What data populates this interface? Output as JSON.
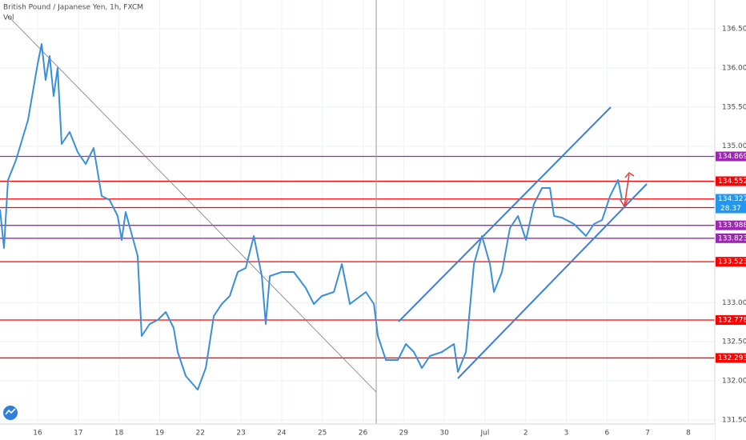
{
  "chart_data": {
    "type": "line",
    "title": "British Pound / Japanese Yen, 1h, FXCM",
    "volume_label": "Vol",
    "xlim": [
      -0.925,
      16.65
    ],
    "ylim": [
      131.449,
      136.868
    ],
    "grid": true,
    "xticks": [
      {
        "value": 0,
        "label": "16"
      },
      {
        "value": 1,
        "label": "17"
      },
      {
        "value": 2,
        "label": "18"
      },
      {
        "value": 3,
        "label": "19"
      },
      {
        "value": 4,
        "label": "22"
      },
      {
        "value": 5,
        "label": "23"
      },
      {
        "value": 6,
        "label": "24"
      },
      {
        "value": 7,
        "label": "25"
      },
      {
        "value": 8,
        "label": "26"
      },
      {
        "value": 9,
        "label": "29"
      },
      {
        "value": 10,
        "label": "30"
      },
      {
        "value": 11,
        "label": "Jul"
      },
      {
        "value": 12,
        "label": "2"
      },
      {
        "value": 13,
        "label": "3"
      },
      {
        "value": 14,
        "label": "6"
      },
      {
        "value": 15,
        "label": "7"
      },
      {
        "value": 16,
        "label": "8"
      }
    ],
    "yticks": [
      {
        "value": 131.5,
        "label": "131.500"
      },
      {
        "value": 132,
        "label": "132.000"
      },
      {
        "value": 132.5,
        "label": "132.500"
      },
      {
        "value": 133,
        "label": "133.000"
      },
      {
        "value": 135,
        "label": "135.000"
      },
      {
        "value": 135.5,
        "label": "135.500"
      },
      {
        "value": 136,
        "label": "136.000"
      },
      {
        "value": 136.5,
        "label": "136.500"
      }
    ],
    "series": [
      {
        "color": "#3a8fdb",
        "x": [
          -0.925,
          -0.827,
          -0.728,
          -0.531,
          -0.236,
          0,
          0.098,
          0.197,
          0.295,
          0.394,
          0.492,
          0.591,
          0.787,
          0.984,
          1.181,
          1.378,
          1.575,
          1.772,
          1.969,
          2.067,
          2.165,
          2.461,
          2.559,
          2.756,
          2.953,
          3.15,
          3.346,
          3.445,
          3.642,
          3.937,
          4.134,
          4.331,
          4.528,
          4.724,
          4.921,
          5.118,
          5.315,
          5.512,
          5.61,
          5.709,
          6.004,
          6.299,
          6.594,
          6.791,
          6.988,
          7.283,
          7.48,
          7.677,
          8.071,
          8.268,
          8.366,
          8.563,
          8.858,
          9.055,
          9.252,
          9.449,
          9.646,
          9.941,
          10.236,
          10.335,
          10.531,
          10.728,
          10.925,
          11.122,
          11.22,
          11.417,
          11.614,
          11.811,
          12.008,
          12.205,
          12.402,
          12.598,
          12.697,
          12.894,
          13.189,
          13.484,
          13.681,
          13.878,
          14.075,
          14.272,
          14.37
        ],
        "values": [
          134.189,
          133.698,
          134.567,
          134.823,
          135.334,
          136.05,
          136.306,
          135.846,
          136.152,
          135.641,
          135.999,
          135.028,
          135.181,
          134.925,
          134.772,
          134.976,
          134.363,
          134.312,
          134.107,
          133.801,
          134.159,
          133.596,
          132.574,
          132.727,
          132.778,
          132.88,
          132.676,
          132.369,
          132.062,
          131.888,
          132.165,
          132.829,
          132.983,
          133.085,
          133.392,
          133.443,
          133.852,
          133.34,
          132.727,
          133.34,
          133.392,
          133.392,
          133.187,
          132.983,
          133.085,
          133.136,
          133.494,
          132.983,
          133.136,
          132.983,
          132.574,
          132.267,
          132.267,
          132.471,
          132.369,
          132.165,
          132.318,
          132.369,
          132.471,
          132.114,
          132.369,
          133.494,
          133.852,
          133.494,
          133.136,
          133.392,
          133.954,
          134.107,
          133.801,
          134.261,
          134.465,
          134.465,
          134.107,
          134.086,
          134.005,
          133.852,
          134.005,
          134.056,
          134.363,
          134.567,
          134.312
        ]
      }
    ],
    "levels": [
      {
        "value": 134.869,
        "color": "#9c27b0"
      },
      {
        "value": 134.552,
        "color": "#ff0000"
      },
      {
        "value": 134.325,
        "color": "#ff0000"
      },
      {
        "value": 134.215,
        "color": "#ff0000"
      },
      {
        "value": 133.988,
        "color": "#9c27b0"
      },
      {
        "value": 133.823,
        "color": "#9c27b0"
      },
      {
        "value": 133.523,
        "color": "#ff0000"
      },
      {
        "value": 132.778,
        "color": "#ff0000"
      },
      {
        "value": 132.293,
        "color": "#ff0000"
      }
    ],
    "last_price": 134.327,
    "countdown": "28.37"
  }
}
